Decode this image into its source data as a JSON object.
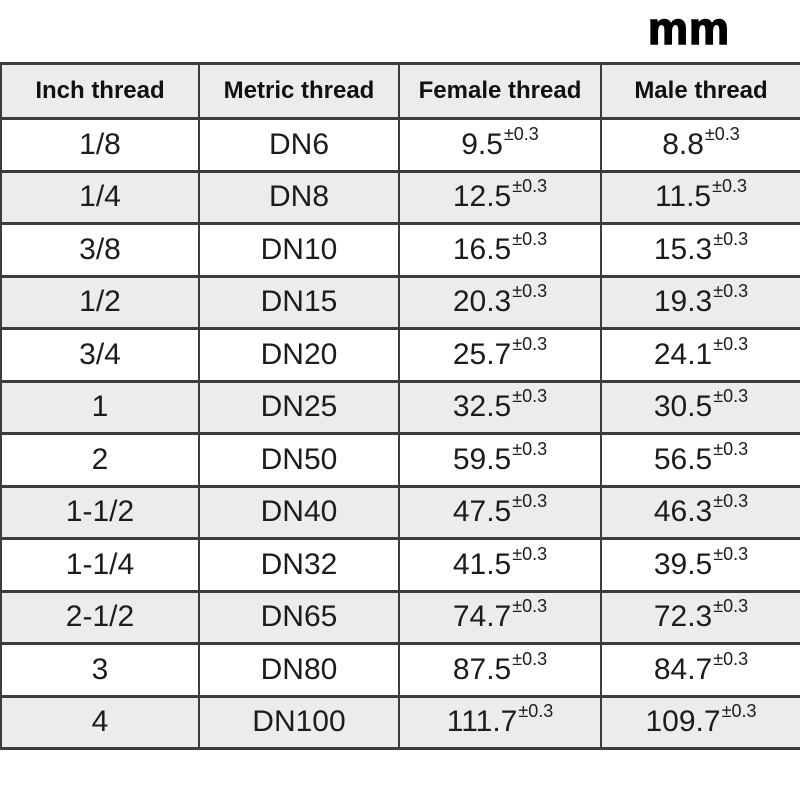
{
  "unit_label": "mm",
  "table": {
    "columns": [
      "Inch thread",
      "Metric thread",
      "Female thread",
      "Male thread"
    ],
    "tolerance": "±0.3",
    "rows": [
      {
        "inch": "1/8",
        "metric": "DN6",
        "female": "9.5",
        "male": "8.8"
      },
      {
        "inch": "1/4",
        "metric": "DN8",
        "female": "12.5",
        "male": "11.5"
      },
      {
        "inch": "3/8",
        "metric": "DN10",
        "female": "16.5",
        "male": "15.3"
      },
      {
        "inch": "1/2",
        "metric": "DN15",
        "female": "20.3",
        "male": "19.3"
      },
      {
        "inch": "3/4",
        "metric": "DN20",
        "female": "25.7",
        "male": "24.1"
      },
      {
        "inch": "1",
        "metric": "DN25",
        "female": "32.5",
        "male": "30.5"
      },
      {
        "inch": "2",
        "metric": "DN50",
        "female": "59.5",
        "male": "56.5"
      },
      {
        "inch": "1-1/2",
        "metric": "DN40",
        "female": "47.5",
        "male": "46.3"
      },
      {
        "inch": "1-1/4",
        "metric": "DN32",
        "female": "41.5",
        "male": "39.5"
      },
      {
        "inch": "2-1/2",
        "metric": "DN65",
        "female": "74.7",
        "male": "72.3"
      },
      {
        "inch": "3",
        "metric": "DN80",
        "female": "87.5",
        "male": "84.7"
      },
      {
        "inch": "4",
        "metric": "DN100",
        "female": "111.7",
        "male": "109.7"
      }
    ]
  },
  "colors": {
    "background": "#ffffff",
    "row_alt_background": "#ececec",
    "border": "#3c3c3c",
    "text": "#1c1c1c"
  }
}
